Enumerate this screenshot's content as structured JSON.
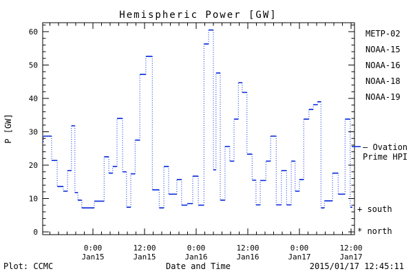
{
  "title": "Hemispheric Power [GW]",
  "axes": {
    "y_label": "P [GW]",
    "x_label": "Date and Time",
    "y_ticks": [
      0,
      10,
      20,
      30,
      40,
      50,
      60
    ],
    "y_minor_step": 2,
    "y_minor_max": 62,
    "x_minor_step_hours": 2,
    "x_ticks": [
      {
        "h": 0,
        "time": "0:00",
        "date": "Jan15"
      },
      {
        "h": 12,
        "time": "12:00",
        "date": "Jan15"
      },
      {
        "h": 24,
        "time": "0:00",
        "date": "Jan16"
      },
      {
        "h": 36,
        "time": "12:00",
        "date": "Jan16"
      },
      {
        "h": 48,
        "time": "0:00",
        "date": "Jan17"
      },
      {
        "h": 60,
        "time": "12:00",
        "date": "Jan17"
      }
    ]
  },
  "legend": {
    "satellites": [
      {
        "label": "METP-02",
        "color": "#000000"
      },
      {
        "label": "NOAA-15",
        "color": "#1133dd"
      },
      {
        "label": "NOAA-16",
        "color": "#33ccff"
      },
      {
        "label": "NOAA-18",
        "color": "#66ee88"
      },
      {
        "label": "NOAA-19",
        "color": "#ffaa22"
      }
    ],
    "ovation_line1": "– Ovation",
    "ovation_line2": "Prime HPI",
    "south_label": "+ south",
    "north_label": "* north"
  },
  "footer": {
    "left": "Plot: CCMC",
    "right": "2015/01/17 12:45:11"
  },
  "colors": {
    "curve": "#1133dd",
    "axis": "#000000",
    "background": "#ffffff"
  },
  "chart_data": {
    "type": "line",
    "subtype": "step-plot, solid horizontal segments with dotted vertical connectors",
    "title": "Hemispheric Power [GW]",
    "xlabel": "Date and Time",
    "ylabel": "P [GW]",
    "ylim": [
      0,
      62
    ],
    "x_unit": "hours since 2015-01-15 00:00 UT",
    "x_range": [
      -11.7,
      60.3
    ],
    "series_name": "Ovation Prime HPI",
    "legend_position": "right-outside",
    "grid": false,
    "steps_format": "[t_start_hours, P_GW]; each step holds until next t_start",
    "steps": [
      [
        -11.7,
        27.0
      ],
      [
        -11.5,
        28.7
      ],
      [
        -9.6,
        21.4
      ],
      [
        -8.3,
        13.6
      ],
      [
        -6.9,
        12.2
      ],
      [
        -5.9,
        18.4
      ],
      [
        -5.0,
        31.8
      ],
      [
        -4.2,
        11.8
      ],
      [
        -3.5,
        9.5
      ],
      [
        -2.6,
        7.2
      ],
      [
        0.3,
        9.2
      ],
      [
        2.6,
        22.5
      ],
      [
        3.7,
        17.6
      ],
      [
        4.6,
        19.6
      ],
      [
        5.6,
        34.0
      ],
      [
        6.9,
        18.0
      ],
      [
        7.8,
        7.4
      ],
      [
        8.8,
        17.4
      ],
      [
        9.8,
        27.5
      ],
      [
        10.9,
        47.2
      ],
      [
        12.3,
        52.6
      ],
      [
        13.8,
        12.6
      ],
      [
        15.4,
        7.2
      ],
      [
        16.5,
        19.6
      ],
      [
        17.6,
        11.3
      ],
      [
        19.5,
        15.7
      ],
      [
        20.6,
        8.0
      ],
      [
        21.9,
        8.5
      ],
      [
        23.2,
        16.7
      ],
      [
        24.5,
        8.0
      ],
      [
        25.8,
        56.3
      ],
      [
        26.9,
        60.5
      ],
      [
        28.0,
        18.6
      ],
      [
        28.6,
        47.6
      ],
      [
        29.6,
        9.5
      ],
      [
        30.7,
        25.6
      ],
      [
        31.8,
        21.2
      ],
      [
        32.8,
        33.8
      ],
      [
        33.8,
        44.7
      ],
      [
        34.7,
        41.8
      ],
      [
        35.8,
        23.3
      ],
      [
        37.0,
        15.5
      ],
      [
        37.9,
        8.1
      ],
      [
        38.9,
        15.4
      ],
      [
        40.2,
        21.2
      ],
      [
        41.3,
        28.7
      ],
      [
        42.6,
        8.1
      ],
      [
        43.8,
        18.4
      ],
      [
        45.0,
        8.1
      ],
      [
        46.1,
        21.2
      ],
      [
        47.0,
        12.2
      ],
      [
        48.0,
        15.7
      ],
      [
        49.0,
        33.8
      ],
      [
        50.2,
        36.7
      ],
      [
        51.2,
        38.1
      ],
      [
        52.2,
        39.0
      ],
      [
        53.0,
        7.2
      ],
      [
        53.8,
        9.3
      ],
      [
        55.7,
        17.6
      ],
      [
        57.0,
        11.3
      ],
      [
        58.6,
        33.8
      ],
      [
        59.8,
        7.4
      ]
    ],
    "t_end": 60.3
  }
}
